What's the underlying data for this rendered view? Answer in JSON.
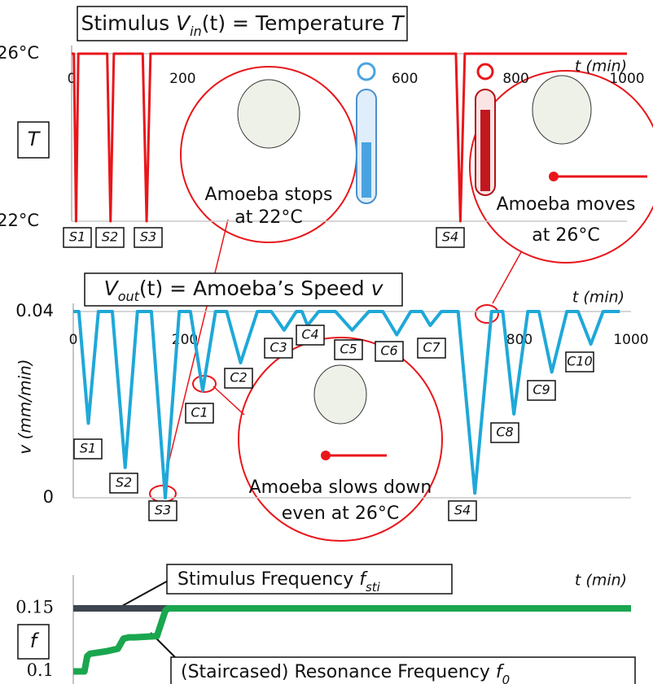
{
  "chart_data": [
    {
      "type": "line",
      "title": [
        "Stimulus ",
        "V",
        "in",
        "(t) = Temperature ",
        "T"
      ],
      "y_label": "T",
      "x_label": "t (min)",
      "xlim": [
        0,
        1000
      ],
      "xticks": [
        0,
        200,
        600,
        800,
        1000
      ],
      "ylim": [
        22,
        26
      ],
      "yticks": [
        {
          "value": 22,
          "label": "22°C"
        },
        {
          "value": 26,
          "label": "26°C"
        }
      ],
      "grid": true,
      "series": [
        {
          "name": "T",
          "color": "#e8161b",
          "x": [
            0,
            4,
            8,
            12,
            64,
            70,
            76,
            128,
            135,
            142,
            692,
            700,
            708,
            1000
          ],
          "values": [
            26,
            26,
            22,
            26,
            26,
            22,
            26,
            26,
            22,
            26,
            26,
            22,
            26,
            26
          ]
        }
      ],
      "point_labels": [
        "S1",
        "S2",
        "S3",
        "S4"
      ],
      "annotations": [
        [
          "Amoeba stops",
          "at 22°C"
        ],
        [
          "Amoeba moves",
          "at 26°C"
        ]
      ]
    },
    {
      "type": "line",
      "title": [
        "V",
        "out",
        "(t) = Amoeba’s Speed ",
        "v"
      ],
      "y_label": "v (mm/min)",
      "x_label": "t (min)",
      "xlim": [
        0,
        1000
      ],
      "xticks": [
        0,
        200,
        800,
        1000
      ],
      "ylim": [
        0,
        0.04
      ],
      "yticks": [
        0,
        0.04
      ],
      "grid": true,
      "series": [
        {
          "name": "v",
          "color": "#1fa8d8",
          "x": [
            0,
            10,
            27,
            45,
            70,
            93,
            115,
            140,
            165,
            190,
            210,
            232,
            255,
            275,
            300,
            330,
            355,
            378,
            400,
            410,
            420,
            440,
            470,
            500,
            530,
            555,
            580,
            605,
            625,
            640,
            660,
            690,
            720,
            750,
            770,
            790,
            815,
            835,
            858,
            885,
            905,
            928,
            950,
            980
          ],
          "values": [
            0.04,
            0.04,
            0.016,
            0.04,
            0.04,
            0.0065,
            0.04,
            0.04,
            0,
            0.04,
            0.04,
            0.023,
            0.04,
            0.04,
            0.029,
            0.04,
            0.04,
            0.036,
            0.04,
            0.04,
            0.037,
            0.04,
            0.04,
            0.036,
            0.04,
            0.04,
            0.035,
            0.04,
            0.04,
            0.037,
            0.04,
            0.04,
            0.001,
            0.04,
            0.04,
            0.018,
            0.04,
            0.04,
            0.027,
            0.04,
            0.04,
            0.033,
            0.04,
            0.04
          ]
        }
      ],
      "point_labels": [
        "S1",
        "S2",
        "S3",
        "C1",
        "C2",
        "C3",
        "C4",
        "C5",
        "C6",
        "C7",
        "S4",
        "C8",
        "C9",
        "C10"
      ],
      "annotations": [
        [
          "Amoeba slows down",
          "even at 26°C"
        ]
      ]
    },
    {
      "type": "line",
      "y_label": "f",
      "x_label": "t (min)",
      "xlim": [
        0,
        1000
      ],
      "ylim": [
        0.09,
        0.17
      ],
      "yticks": [
        0.1,
        0.15
      ],
      "grid": false,
      "series": [
        {
          "name": "Stimulus Frequency ",
          "symbol": "f",
          "subscript": "sti",
          "color": "#3d4650",
          "x": [
            0,
            1000
          ],
          "values": [
            0.15,
            0.15
          ]
        },
        {
          "name": "(Staircased) Resonance Frequency ",
          "symbol": "f",
          "subscript": "0",
          "color": "#1aa64f",
          "x": [
            0,
            20,
            25,
            30,
            60,
            80,
            90,
            100,
            110,
            150,
            165,
            170,
            1000
          ],
          "values": [
            0.1,
            0.1,
            0.112,
            0.114,
            0.116,
            0.118,
            0.126,
            0.127,
            0.127,
            0.128,
            0.148,
            0.15,
            0.15
          ]
        }
      ]
    }
  ]
}
